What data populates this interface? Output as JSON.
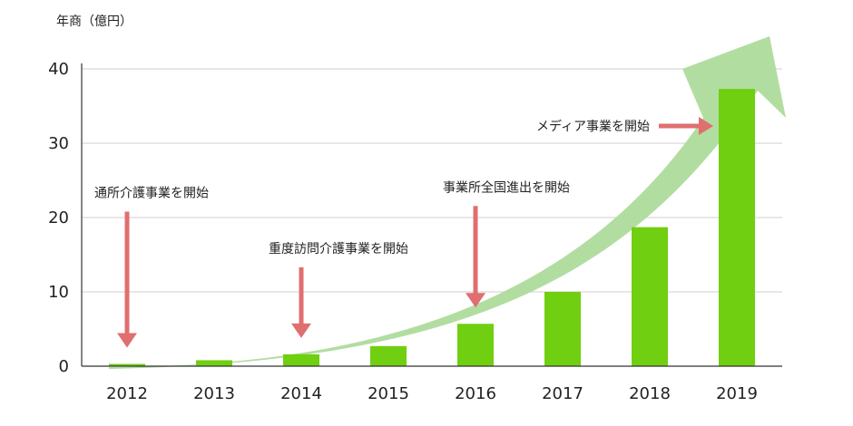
{
  "chart_data": {
    "type": "bar",
    "ylabel": "年商（億円）",
    "categories": [
      "2012",
      "2013",
      "2014",
      "2015",
      "2016",
      "2017",
      "2018",
      "2019"
    ],
    "values": [
      0.3,
      0.8,
      1.6,
      2.7,
      5.7,
      10.0,
      18.7,
      37.3
    ],
    "ylim": [
      0,
      40
    ],
    "yticks": [
      0,
      10,
      20,
      30,
      40
    ],
    "grid": true,
    "colors": {
      "bar": "#6fcf10",
      "trend_arrow": "#aedb9c",
      "annotation_arrow": "#e06f70",
      "grid": "#cfcfcf",
      "axis": "#333333"
    },
    "annotations": [
      {
        "text": "通所介護事業を開始",
        "category": "2012",
        "direction": "down"
      },
      {
        "text": "重度訪問介護事業を開始",
        "category": "2014",
        "direction": "down"
      },
      {
        "text": "事業所全国進出を開始",
        "category": "2016",
        "direction": "down"
      },
      {
        "text": "メディア事業を開始",
        "category": "2019",
        "direction": "right"
      }
    ]
  }
}
